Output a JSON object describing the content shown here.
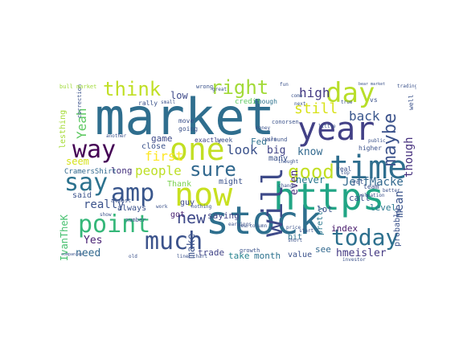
{
  "word_cloud": {
    "colormap": "viridis",
    "words": [
      {
        "text": "market",
        "color": "#2f6e8e"
      },
      {
        "text": "stock",
        "color": "#2e6f8e"
      },
      {
        "text": "https",
        "color": "#21a585"
      },
      {
        "text": "time",
        "color": "#2e6e8e"
      },
      {
        "text": "year",
        "color": "#424086"
      },
      {
        "text": "now",
        "color": "#c8e020"
      },
      {
        "text": "one",
        "color": "#c2df23"
      },
      {
        "text": "day",
        "color": "#b8de29"
      },
      {
        "text": "amp",
        "color": "#39568c"
      },
      {
        "text": "say",
        "color": "#2c728e"
      },
      {
        "text": "way",
        "color": "#440154"
      },
      {
        "text": "point",
        "color": "#35b779"
      },
      {
        "text": "much",
        "color": "#3b528b"
      },
      {
        "text": "today",
        "color": "#2d708e"
      },
      {
        "text": "will",
        "color": "#3e4a89"
      },
      {
        "text": "think",
        "color": "#c0df25"
      },
      {
        "text": "right",
        "color": "#a2da37"
      },
      {
        "text": "good",
        "color": "#c2df23"
      },
      {
        "text": "sure",
        "color": "#31688e"
      },
      {
        "text": "maybe",
        "color": "#3b528b"
      },
      {
        "text": "new",
        "color": "#3e4989"
      },
      {
        "text": "still",
        "color": "#d8e219"
      },
      {
        "text": "high",
        "color": "#443983"
      },
      {
        "text": "back",
        "color": "#39568c"
      },
      {
        "text": "Yeah",
        "color": "#5ec962"
      },
      {
        "text": "people",
        "color": "#bddf26"
      },
      {
        "text": "look",
        "color": "#3b528b"
      },
      {
        "text": "first",
        "color": "#fde725"
      },
      {
        "text": "really",
        "color": "#3b528b"
      },
      {
        "text": "JeffMacke",
        "color": "#31688e"
      },
      {
        "text": "mean",
        "color": "#3a538b"
      },
      {
        "text": "though",
        "color": "#46307e"
      },
      {
        "text": "even",
        "color": "#472d7b"
      },
      {
        "text": "big",
        "color": "#414487"
      },
      {
        "text": "know",
        "color": "#31688e"
      },
      {
        "text": "never",
        "color": "#2a788e"
      },
      {
        "text": "make",
        "color": "#3b528b"
      },
      {
        "text": "hmeisler",
        "color": "#443983"
      },
      {
        "text": "month",
        "color": "#2c728e"
      },
      {
        "text": "take",
        "color": "#26828e"
      },
      {
        "text": "trade",
        "color": "#414487"
      },
      {
        "text": "need",
        "color": "#31688e"
      },
      {
        "text": "Yes",
        "color": "#482173"
      },
      {
        "text": "IvanTheK",
        "color": "#46c06f"
      },
      {
        "text": "lesthing",
        "color": "#a5db36"
      },
      {
        "text": "seem",
        "color": "#d5e21a"
      },
      {
        "text": "long",
        "color": "#46327e"
      },
      {
        "text": "saying",
        "color": "#414487"
      },
      {
        "text": "level",
        "color": "#2a788e"
      },
      {
        "text": "index",
        "color": "#481a6c"
      },
      {
        "text": "pretty",
        "color": "#2a778e"
      },
      {
        "text": "probably",
        "color": "#3b528b"
      },
      {
        "text": "low",
        "color": "#3e4989"
      },
      {
        "text": "game",
        "color": "#3e4a89"
      },
      {
        "text": "close",
        "color": "#3b528b"
      },
      {
        "text": "got",
        "color": "#481f70"
      },
      {
        "text": "might",
        "color": "#3b528b"
      },
      {
        "text": "Fed",
        "color": "#2d708e"
      },
      {
        "text": "many",
        "color": "#3b528b"
      },
      {
        "text": "lot",
        "color": "#3b528b"
      },
      {
        "text": "call",
        "color": "#3b528b"
      },
      {
        "text": "see",
        "color": "#31688e"
      },
      {
        "text": "value",
        "color": "#3b528b"
      },
      {
        "text": "bit",
        "color": "#2c728e"
      },
      {
        "text": "CramersShirt",
        "color": "#31688e"
      },
      {
        "text": "said",
        "color": "#3b528b"
      },
      {
        "text": "always",
        "color": "#3b528b"
      },
      {
        "text": "guy",
        "color": "#3e4989"
      },
      {
        "text": "Thank",
        "color": "#7ad151"
      },
      {
        "text": "exactly",
        "color": "#414487"
      },
      {
        "text": "week",
        "color": "#3b528b"
      },
      {
        "text": "going",
        "color": "#3b528b"
      },
      {
        "text": "move",
        "color": "#3b528b"
      },
      {
        "text": "credit",
        "color": "#5ec962"
      },
      {
        "text": "enough",
        "color": "#2c728e"
      },
      {
        "text": "rally",
        "color": "#3b528b"
      },
      {
        "text": "wrong",
        "color": "#3b528b"
      },
      {
        "text": "correction",
        "color": "#3b528b"
      },
      {
        "text": "bull market",
        "color": "#a0da39"
      },
      {
        "text": "higher",
        "color": "#3b528b"
      },
      {
        "text": "yet",
        "color": "#3b528b"
      },
      {
        "text": "team",
        "color": "#3b528b"
      },
      {
        "text": "real",
        "color": "#3b528b"
      },
      {
        "text": "vs",
        "color": "#3b528b"
      },
      {
        "text": "well",
        "color": "#3b528b"
      },
      {
        "text": "next",
        "color": "#3b528b"
      },
      {
        "text": "come",
        "color": "#3b528b"
      },
      {
        "text": "conorsen",
        "color": "#3b528b"
      },
      {
        "text": "growth",
        "color": "#3b528b"
      },
      {
        "text": "almost",
        "color": "#3b528b"
      },
      {
        "text": "number",
        "color": "#3b528b"
      },
      {
        "text": "line",
        "color": "#3b528b"
      },
      {
        "text": "chart",
        "color": "#3b528b"
      },
      {
        "text": "investor",
        "color": "#3b528b"
      },
      {
        "text": "small",
        "color": "#3b528b"
      },
      {
        "text": "start",
        "color": "#3b528b"
      },
      {
        "text": "price",
        "color": "#3b528b"
      },
      {
        "text": "trading",
        "color": "#3b528b"
      },
      {
        "text": "bear market",
        "color": "#3b528b"
      },
      {
        "text": "little",
        "color": "#3b528b"
      },
      {
        "text": "public",
        "color": "#3b528b"
      },
      {
        "text": "companies",
        "color": "#3b528b"
      },
      {
        "text": "another",
        "color": "#3b528b"
      },
      {
        "text": "valuation",
        "color": "#3b528b"
      },
      {
        "text": "true",
        "color": "#3b528b"
      },
      {
        "text": "thought",
        "color": "#3b528b"
      },
      {
        "text": "around",
        "color": "#3b528b"
      },
      {
        "text": "money",
        "color": "#3b528b"
      },
      {
        "text": "earnings",
        "color": "#3b528b"
      },
      {
        "text": "short",
        "color": "#3b528b"
      },
      {
        "text": "better",
        "color": "#3b528b"
      },
      {
        "text": "work",
        "color": "#3b528b"
      },
      {
        "text": "show",
        "color": "#3b528b"
      },
      {
        "text": "old",
        "color": "#3b528b"
      },
      {
        "text": "fun",
        "color": "#3b528b"
      },
      {
        "text": "cycle",
        "color": "#3b528b"
      },
      {
        "text": "nothing",
        "color": "#3b528b"
      },
      {
        "text": "great",
        "color": "#3b528b"
      },
      {
        "text": "top",
        "color": "#3b528b"
      },
      {
        "text": "change",
        "color": "#3b528b"
      },
      {
        "text": "new column",
        "color": "#3b528b"
      }
    ]
  }
}
